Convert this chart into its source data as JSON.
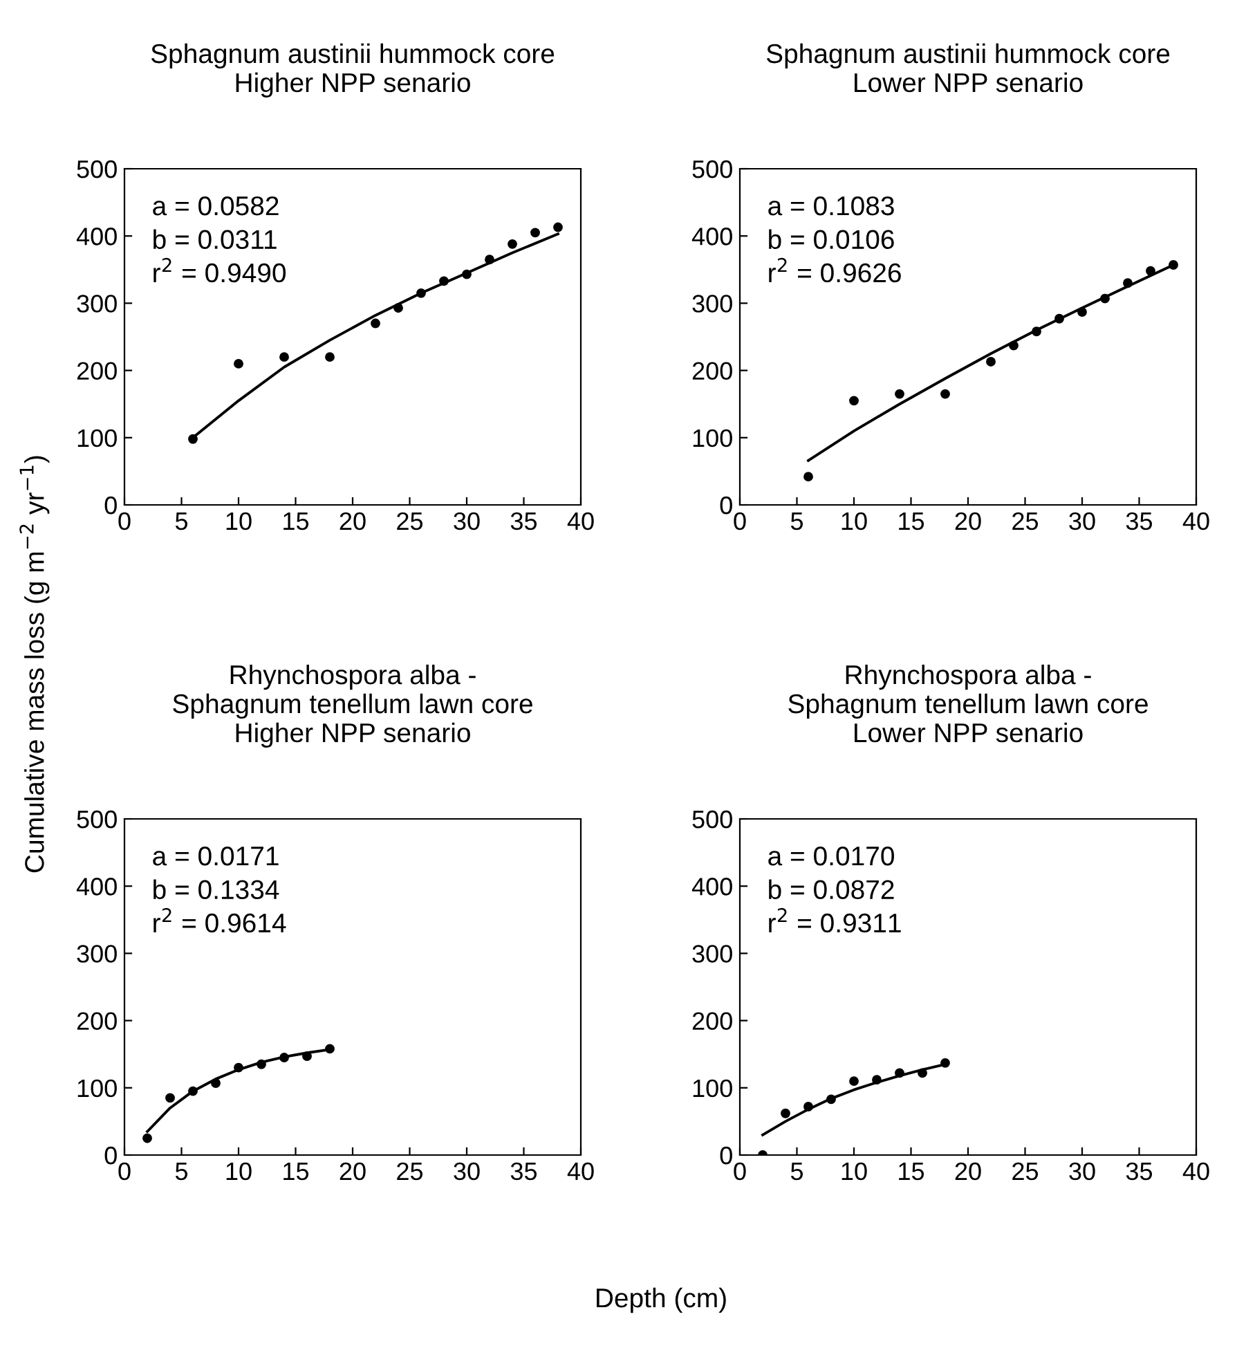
{
  "chart_data": [
    {
      "type": "scatter",
      "title": "Sphagnum austinii hummock core\nHigher NPP senario",
      "ylabel": "Cumulative mass loss (g m$^{−2}$ yr$^{−1}$)",
      "xlabel": "Depth (cm)",
      "xlim": [
        0,
        40
      ],
      "xticks": [
        0,
        5,
        10,
        15,
        20,
        25,
        30,
        35,
        40
      ],
      "ylim": [
        0,
        500
      ],
      "yticks": [
        0,
        100,
        200,
        300,
        400,
        500
      ],
      "grid": false,
      "annotations": [
        "a = 0.0582",
        "b = 0.0311",
        "r$^{2}$ = 0.9490"
      ],
      "series": [
        {
          "marker": "circle",
          "color": "#000000",
          "x": [
            6,
            10,
            14,
            18,
            22,
            24,
            26,
            28,
            30,
            32,
            34,
            36,
            38
          ],
          "values": [
            98,
            210,
            220,
            220,
            270,
            293,
            315,
            333,
            343,
            365,
            388,
            405,
            413
          ]
        },
        {
          "type": "line",
          "line_style": "solid",
          "color": "#000000",
          "x": [
            6,
            10,
            14,
            18,
            22,
            26,
            30,
            34,
            38
          ],
          "values": [
            100,
            155,
            205,
            245,
            282,
            315,
            345,
            375,
            403
          ]
        }
      ]
    },
    {
      "type": "scatter",
      "title": "Sphagnum austinii hummock core\nLower NPP senario",
      "xlim": [
        0,
        40
      ],
      "xticks": [
        0,
        5,
        10,
        15,
        20,
        25,
        30,
        35,
        40
      ],
      "ylim": [
        0,
        500
      ],
      "yticks": [
        0,
        100,
        200,
        300,
        400,
        500
      ],
      "grid": false,
      "annotations": [
        "a = 0.1083",
        "b = 0.0106",
        "r$^{2}$ = 0.9626"
      ],
      "series": [
        {
          "marker": "circle",
          "color": "#000000",
          "x": [
            6,
            10,
            14,
            18,
            22,
            24,
            26,
            28,
            30,
            32,
            34,
            36,
            38
          ],
          "values": [
            42,
            155,
            165,
            165,
            213,
            237,
            258,
            277,
            287,
            307,
            330,
            348,
            357
          ]
        },
        {
          "type": "line",
          "line_style": "solid",
          "color": "#000000",
          "x": [
            6,
            10,
            14,
            18,
            22,
            26,
            30,
            34,
            38
          ],
          "values": [
            66,
            110,
            150,
            188,
            225,
            260,
            293,
            325,
            357
          ]
        }
      ]
    },
    {
      "type": "scatter",
      "title": "Rhynchospora alba -\nSphagnum tenellum lawn core\nHigher NPP senario",
      "xlim": [
        0,
        40
      ],
      "xticks": [
        0,
        5,
        10,
        15,
        20,
        25,
        30,
        35,
        40
      ],
      "ylim": [
        0,
        500
      ],
      "yticks": [
        0,
        100,
        200,
        300,
        400,
        500
      ],
      "grid": false,
      "annotations": [
        "a = 0.0171",
        "b = 0.1334",
        "r$^{2}$ = 0.9614"
      ],
      "series": [
        {
          "marker": "circle",
          "color": "#000000",
          "x": [
            2,
            4,
            6,
            8,
            10,
            12,
            14,
            16,
            18
          ],
          "values": [
            25,
            85,
            95,
            107,
            130,
            135,
            145,
            147,
            158
          ]
        },
        {
          "type": "line",
          "line_style": "solid",
          "color": "#000000",
          "x": [
            2,
            4,
            6,
            8,
            10,
            12,
            14,
            16,
            18
          ],
          "values": [
            35,
            70,
            95,
            113,
            127,
            138,
            146,
            152,
            157
          ]
        }
      ]
    },
    {
      "type": "scatter",
      "title": "Rhynchospora alba -\nSphagnum tenellum lawn core\nLower NPP senario",
      "xlim": [
        0,
        40
      ],
      "xticks": [
        0,
        5,
        10,
        15,
        20,
        25,
        30,
        35,
        40
      ],
      "ylim": [
        0,
        500
      ],
      "yticks": [
        0,
        100,
        200,
        300,
        400,
        500
      ],
      "grid": false,
      "annotations": [
        "a = 0.0170",
        "b = 0.0872",
        "r$^{2}$ = 0.9311"
      ],
      "series": [
        {
          "marker": "circle",
          "color": "#000000",
          "x": [
            2,
            4,
            6,
            8,
            10,
            12,
            14,
            16,
            18
          ],
          "values": [
            0,
            62,
            72,
            83,
            110,
            112,
            122,
            122,
            137
          ]
        },
        {
          "type": "line",
          "line_style": "solid",
          "color": "#000000",
          "x": [
            2,
            4,
            6,
            8,
            10,
            12,
            14,
            16,
            18
          ],
          "values": [
            30,
            50,
            68,
            84,
            97,
            108,
            118,
            127,
            135
          ]
        }
      ]
    }
  ]
}
